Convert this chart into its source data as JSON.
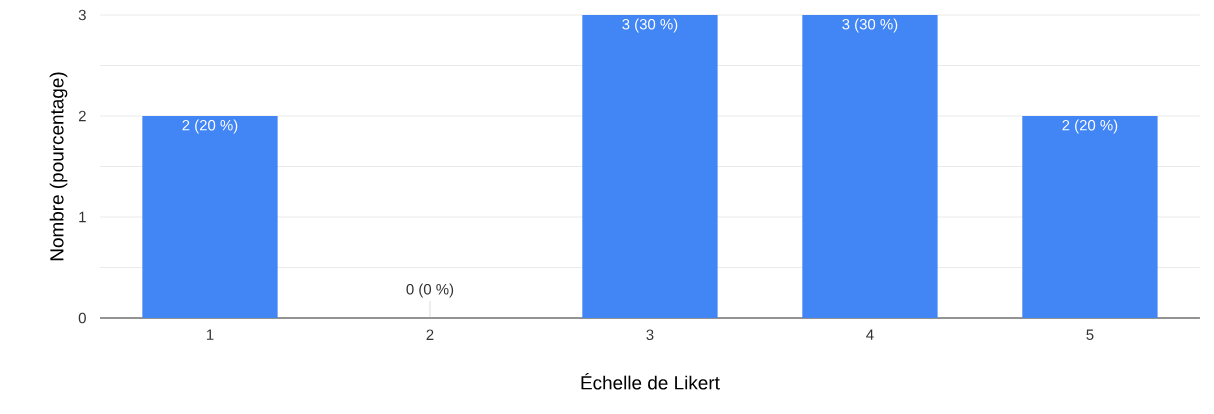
{
  "chart_data": {
    "type": "bar",
    "xlabel": "Échelle de Likert",
    "ylabel": "Nombre (pourcentage)",
    "categories": [
      "1",
      "2",
      "3",
      "4",
      "5"
    ],
    "values": [
      2,
      0,
      3,
      3,
      2
    ],
    "value_labels": [
      "2 (20 %)",
      "0 (0 %)",
      "3 (30 %)",
      "3 (30 %)",
      "2 (20 %)"
    ],
    "color": "#4285f4",
    "ylim": [
      0,
      3
    ],
    "yticks": [
      0,
      {
        "value": 0.5,
        "label": null
      },
      1,
      {
        "value": 1.5,
        "label": null
      },
      2,
      {
        "value": 2.5,
        "label": null
      },
      3
    ],
    "grid": "y"
  }
}
